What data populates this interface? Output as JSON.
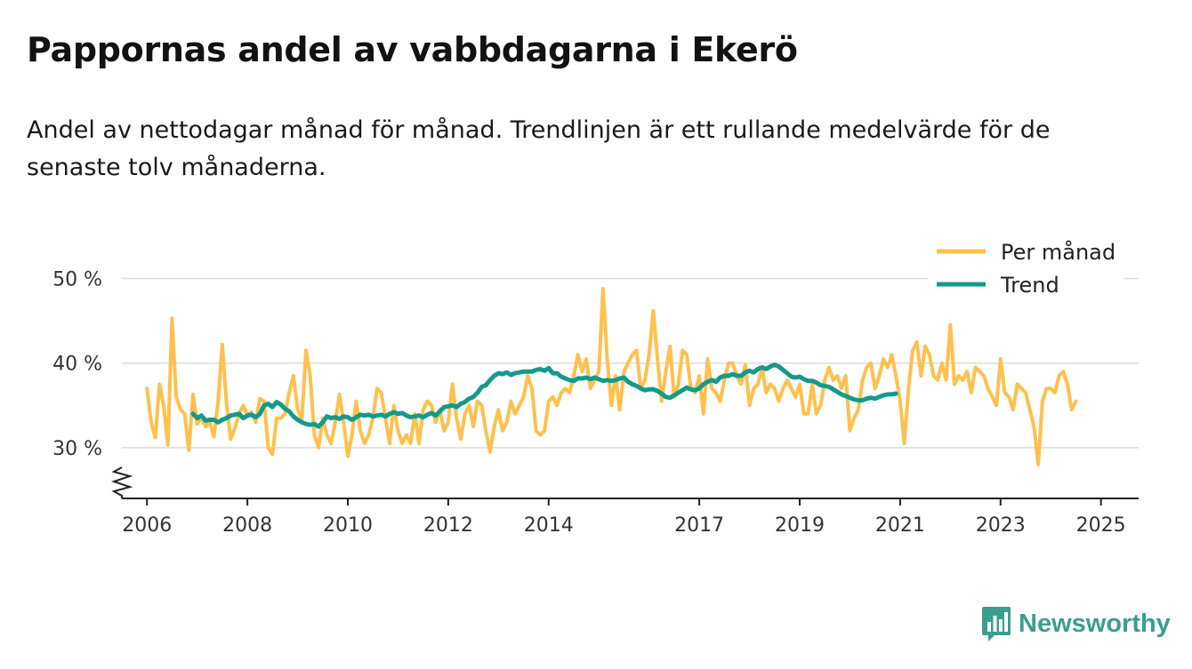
{
  "title": "Pappornas andel av vabbdagarna i Ekerö",
  "subtitle": "Andel av nettodagar månad för månad. Trendlinjen är ett rullande medelvärde för de senaste tolv månaderna.",
  "brand": {
    "name": "Newsworthy",
    "icon": "bar-chart-logo-icon",
    "color": "#3a9e8f"
  },
  "colors": {
    "monthly": "#ffc04d",
    "trend": "#15998a",
    "grid": "#dddddd",
    "axis": "#222222"
  },
  "chart_data": {
    "type": "line",
    "title": "Pappornas andel av vabbdagarna i Ekerö",
    "xlabel": "",
    "ylabel": "",
    "y_ticks": [
      30,
      40,
      50
    ],
    "y_tick_labels": [
      "30 %",
      "40 %",
      "50 %"
    ],
    "ylim": [
      24,
      53
    ],
    "x_range": [
      2005.5,
      2025.75
    ],
    "x_ticks": [
      2006,
      2008,
      2010,
      2012,
      2014,
      2017,
      2019,
      2021,
      2023,
      2025
    ],
    "x_tick_labels": [
      "2006",
      "2008",
      "2010",
      "2012",
      "2014",
      "2017",
      "2019",
      "2021",
      "2023",
      "2025"
    ],
    "grid": true,
    "legend_position": "top-right",
    "y_axis_break": true,
    "series": [
      {
        "name": "Per månad",
        "start": "2006-01",
        "values": [
          37,
          33,
          31.2,
          37.5,
          35,
          30.3,
          45.3,
          36,
          34.5,
          34,
          29.7,
          36.3,
          32.8,
          33.5,
          32.5,
          33,
          31.3,
          35.5,
          42.2,
          35.3,
          31,
          32.3,
          34,
          35,
          33.8,
          34.2,
          33,
          35.8,
          35.5,
          30,
          29.2,
          33.5,
          33.5,
          34,
          36.5,
          38.5,
          34.5,
          33.3,
          41.5,
          38.5,
          31.5,
          30,
          33.5,
          31.5,
          30.5,
          33,
          36.3,
          33,
          29,
          31.5,
          35.5,
          32,
          30.5,
          31.5,
          33.5,
          37,
          36.5,
          33.5,
          30.5,
          35,
          32,
          30.5,
          31.5,
          30.5,
          34,
          30.5,
          34.5,
          35.5,
          35,
          33,
          34.5,
          32,
          33,
          37.5,
          33.5,
          31,
          34,
          35,
          32.5,
          35.5,
          35,
          32,
          29.5,
          32.5,
          34.5,
          32,
          33,
          35.5,
          34,
          35,
          36,
          38.5,
          37,
          32,
          31.5,
          32,
          35.5,
          36,
          35,
          36.5,
          37,
          36.5,
          38.5,
          41,
          39,
          40.5,
          37,
          38,
          39,
          48.8,
          40.5,
          35,
          38.5,
          34.5,
          39,
          40,
          41,
          41.5,
          37,
          38,
          41,
          46.2,
          40.5,
          35.5,
          39,
          42,
          36,
          37.5,
          41.5,
          41,
          37,
          36.5,
          38.5,
          34,
          40.5,
          37,
          36.5,
          35.5,
          38,
          40,
          40,
          38.5,
          37.5,
          39.8,
          35,
          37,
          37.5,
          39.5,
          36.5,
          37.5,
          37,
          35.5,
          37,
          38,
          37,
          36,
          37.5,
          34,
          34,
          37.5,
          34,
          35,
          38,
          39.5,
          38,
          38.5,
          37,
          38.5,
          32,
          33.5,
          34.5,
          38,
          39.5,
          40,
          37,
          38.5,
          40.5,
          39.5,
          41,
          38.5,
          35.5,
          30.5,
          37,
          41.5,
          42.5,
          38.5,
          42,
          41,
          38.5,
          38,
          40,
          38,
          44.5,
          37.5,
          38.5,
          38,
          39,
          36.5,
          39.5,
          39,
          38.5,
          37,
          36,
          35,
          40.5,
          36.5,
          36,
          34.5,
          37.5,
          37,
          36.5,
          34.5,
          32.5,
          28,
          35.5,
          37,
          37,
          36.5,
          38.5,
          39,
          37.5,
          34.5,
          35.5
        ]
      },
      {
        "name": "Trend",
        "start": "2006-12",
        "values": [
          34,
          33.5,
          33.8,
          33.2,
          33.3,
          33.3,
          33,
          33.3,
          33.5,
          33.8,
          33.9,
          34,
          33.5,
          33.8,
          33.9,
          33.6,
          34,
          35,
          35.2,
          34.8,
          35.4,
          35.1,
          34.6,
          34.3,
          33.7,
          33.3,
          33,
          32.8,
          32.7,
          32.8,
          32.5,
          33,
          33.7,
          33.5,
          33.6,
          33.4,
          33.7,
          33.6,
          33.3,
          33.6,
          33.9,
          33.8,
          33.9,
          33.7,
          33.8,
          33.9,
          33.7,
          34,
          34.2,
          34,
          34.1,
          33.8,
          33.6,
          33.7,
          33.8,
          33.6,
          33.9,
          34.1,
          33.8,
          34.3,
          34.8,
          34.9,
          35,
          34.8,
          35.2,
          35.4,
          35.8,
          36,
          36.5,
          37.2,
          37.4,
          38,
          38.5,
          38.8,
          38.7,
          38.9,
          38.6,
          38.8,
          38.9,
          39,
          39,
          39,
          39.2,
          39.3,
          39.1,
          39.4,
          38.8,
          38.8,
          38.4,
          38.2,
          38,
          37.9,
          38.2,
          38.2,
          38.3,
          38.1,
          38.3,
          38.1,
          37.9,
          38,
          37.9,
          38,
          38.2,
          38.3,
          37.8,
          37.5,
          37.3,
          37,
          36.8,
          36.9,
          36.9,
          36.7,
          36.4,
          36,
          35.9,
          36.2,
          36.5,
          36.8,
          37.1,
          36.9,
          36.8,
          37,
          37.5,
          37.8,
          38,
          37.8,
          38.3,
          38.5,
          38.5,
          38.7,
          38.5,
          38.5,
          38.9,
          39.1,
          38.9,
          39.3,
          39.5,
          39.3,
          39.6,
          39.8,
          39.6,
          39.2,
          38.8,
          38.4,
          38.3,
          38.4,
          38.1,
          37.9,
          37.9,
          37.7,
          37.4,
          37.3,
          37.2,
          36.9,
          36.6,
          36.3,
          36.1,
          35.9,
          35.7,
          35.6,
          35.6,
          35.8,
          35.9,
          35.8,
          36,
          36.2,
          36.3,
          36.3,
          36.4
        ]
      }
    ]
  }
}
